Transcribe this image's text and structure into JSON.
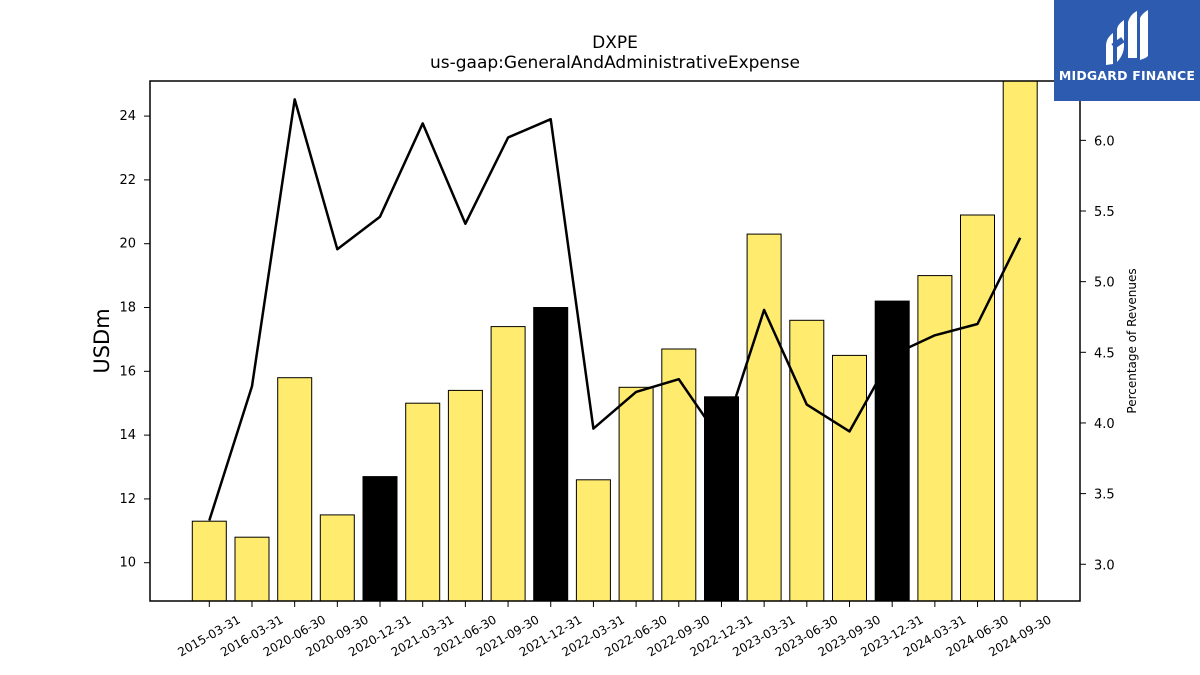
{
  "chart_data": {
    "type": "bar",
    "title": "DXPE",
    "subtitle": "us-gaap:GeneralAndAdministrativeExpense",
    "ylabel": "USDm",
    "y2label": "Percentage of Revenues",
    "ylim": [
      8.8,
      25.1
    ],
    "y2lim": [
      2.74,
      6.42
    ],
    "yticks": [
      10,
      12,
      14,
      16,
      18,
      20,
      22,
      24
    ],
    "y2ticks": [
      3.0,
      3.5,
      4.0,
      4.5,
      5.0,
      5.5,
      6.0
    ],
    "y2tick_labels": [
      "3.0",
      "3.5",
      "4.0",
      "4.5",
      "5.0",
      "5.5",
      "6.0"
    ],
    "categories": [
      "2015-03-31",
      "2016-03-31",
      "2020-06-30",
      "2020-09-30",
      "2020-12-31",
      "2021-03-31",
      "2021-06-30",
      "2021-09-30",
      "2021-12-31",
      "2022-03-31",
      "2022-06-30",
      "2022-09-30",
      "2022-12-31",
      "2023-03-31",
      "2023-06-30",
      "2023-09-30",
      "2023-12-31",
      "2024-03-31",
      "2024-06-30",
      "2024-09-30"
    ],
    "series": [
      {
        "type": "bar",
        "values": [
          11.3,
          10.8,
          15.8,
          11.5,
          12.7,
          15.0,
          15.4,
          17.4,
          18.0,
          12.6,
          15.5,
          16.7,
          15.2,
          20.3,
          17.6,
          16.5,
          18.2,
          19.0,
          20.9,
          25.1
        ],
        "colors": [
          "#ffec6e",
          "#ffec6e",
          "#ffec6e",
          "#ffec6e",
          "#000000",
          "#ffec6e",
          "#ffec6e",
          "#ffec6e",
          "#000000",
          "#ffec6e",
          "#ffec6e",
          "#ffec6e",
          "#000000",
          "#ffec6e",
          "#ffec6e",
          "#ffec6e",
          "#000000",
          "#ffec6e",
          "#ffec6e",
          "#ffec6e"
        ]
      },
      {
        "type": "line",
        "axis": "right",
        "color": "#000000",
        "values": [
          3.31,
          4.26,
          6.29,
          5.23,
          5.46,
          6.12,
          5.41,
          6.02,
          6.15,
          3.96,
          4.22,
          4.31,
          3.87,
          4.8,
          4.13,
          3.94,
          4.48,
          4.62,
          4.7,
          5.31
        ]
      }
    ],
    "grid": false,
    "legend": "none"
  },
  "logo": {
    "text": "MIDGARD FINANCE",
    "mark": "mf-monogram-icon",
    "background": "#2d5bb0"
  }
}
